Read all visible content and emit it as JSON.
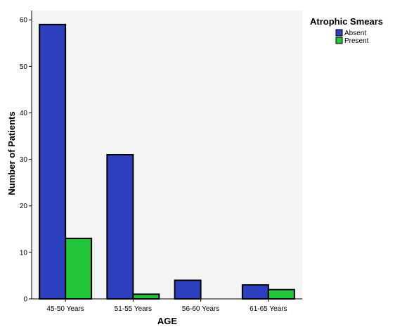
{
  "chart_data": {
    "type": "bar",
    "categories": [
      "45-50 Years",
      "51-55 Years",
      "56-60 Years",
      "61-65 Years"
    ],
    "series": [
      {
        "name": "Absent",
        "values": [
          59,
          31,
          4,
          3
        ],
        "color": "#2b3fbf"
      },
      {
        "name": "Present",
        "values": [
          13,
          1,
          0,
          2
        ],
        "color": "#22c43a"
      }
    ],
    "xlabel": "AGE",
    "ylabel": "Number of Patients",
    "ylim": [
      0,
      62
    ],
    "yticks": [
      0,
      10,
      20,
      30,
      40,
      50,
      60
    ],
    "legend": {
      "title": "Atrophic Smears",
      "position": "top-right"
    },
    "grid": false,
    "plot_background": "#f4f4f4"
  }
}
